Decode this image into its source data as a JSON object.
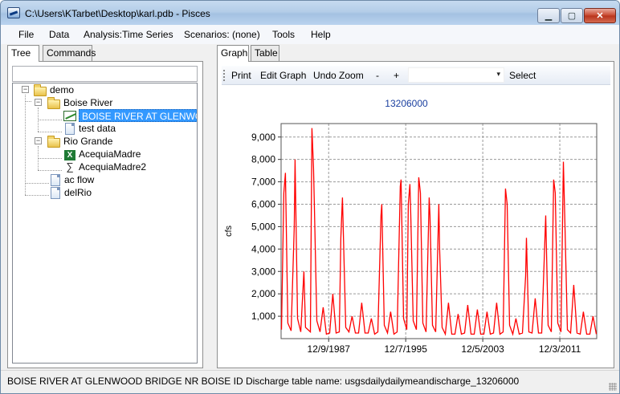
{
  "window": {
    "title": "C:\\Users\\KTarbet\\Desktop\\karl.pdb - Pisces",
    "min_glyph": "▁",
    "max_glyph": "▢",
    "close_glyph": "✕"
  },
  "menu": {
    "file": "File",
    "data": "Data",
    "analysis": "Analysis:Time Series",
    "scenarios": "Scenarios: (none)",
    "tools": "Tools",
    "help": "Help"
  },
  "left_tabs": {
    "tree": "Tree",
    "commands": "Commands"
  },
  "tree": {
    "root": "demo",
    "boise_river": "Boise River",
    "boise_glenwood": "BOISE RIVER AT GLENWOOD",
    "test_data": "test data",
    "rio_grande": "Rio Grande",
    "acequia1": "AcequiaMadre",
    "acequia2": "AcequiaMadre2",
    "ac_flow": "ac flow",
    "del_rio": "delRio",
    "expander_glyph": "−"
  },
  "right_tabs": {
    "graph": "Graph",
    "table": "Table"
  },
  "toolbar": {
    "print": "Print",
    "edit_graph": "Edit Graph",
    "undo_zoom": "Undo Zoom",
    "minus": "-",
    "plus": "+",
    "combo_value": "",
    "combo_arrow": "▾",
    "select": "Select"
  },
  "status": {
    "text": "BOISE RIVER AT GLENWOOD BRIDGE NR BOISE ID Discharge table name: usgsdailydailymeandischarge_13206000"
  },
  "colors": {
    "series": "#ff0000",
    "title": "#1a3f9f",
    "selection": "#3399ff"
  },
  "chart_data": {
    "type": "line",
    "title": "13206000",
    "ylabel": "cfs",
    "xlabel": "",
    "ylim": [
      0,
      9600
    ],
    "y_ticks": [
      1000,
      2000,
      3000,
      4000,
      5000,
      6000,
      7000,
      8000,
      9000
    ],
    "y_tick_labels": [
      "1,000",
      "2,000",
      "3,000",
      "4,000",
      "5,000",
      "6,000",
      "7,000",
      "8,000",
      "9,000"
    ],
    "x_tick_labels": [
      "12/9/1987",
      "12/7/1995",
      "12/5/2003",
      "12/3/2011"
    ],
    "xlim": [
      "1983-01-01",
      "2015-10-01"
    ],
    "grid": true,
    "series": [
      {
        "x": [
          "1983-01",
          "1983-04",
          "1983-06",
          "1983-09",
          "1984-01",
          "1984-05",
          "1984-06",
          "1984-09",
          "1985-01",
          "1985-05",
          "1985-07",
          "1986-01",
          "1986-03",
          "1986-05",
          "1986-06",
          "1986-09",
          "1987-01",
          "1987-05",
          "1987-09",
          "1988-01",
          "1988-05",
          "1988-09",
          "1989-01",
          "1989-03",
          "1989-05",
          "1989-09",
          "1990-01",
          "1990-05",
          "1990-09",
          "1991-01",
          "1991-05",
          "1991-09",
          "1992-01",
          "1992-05",
          "1992-09",
          "1993-01",
          "1993-05",
          "1993-06",
          "1993-09",
          "1994-01",
          "1994-05",
          "1994-09",
          "1995-01",
          "1995-05",
          "1995-06",
          "1995-09",
          "1996-01",
          "1996-03",
          "1996-05",
          "1996-06",
          "1996-09",
          "1997-01",
          "1997-04",
          "1997-06",
          "1997-09",
          "1998-01",
          "1998-05",
          "1998-06",
          "1998-09",
          "1999-01",
          "1999-05",
          "1999-06",
          "1999-09",
          "2000-01",
          "2000-05",
          "2000-09",
          "2001-01",
          "2001-05",
          "2001-09",
          "2002-01",
          "2002-05",
          "2002-09",
          "2003-01",
          "2003-05",
          "2003-09",
          "2004-01",
          "2004-05",
          "2004-09",
          "2005-01",
          "2005-05",
          "2005-09",
          "2006-01",
          "2006-04",
          "2006-06",
          "2006-09",
          "2007-01",
          "2007-05",
          "2007-09",
          "2008-01",
          "2008-05",
          "2008-06",
          "2008-09",
          "2009-01",
          "2009-05",
          "2009-09",
          "2010-01",
          "2010-06",
          "2010-09",
          "2011-01",
          "2011-04",
          "2011-06",
          "2011-09",
          "2012-01",
          "2012-04",
          "2012-06",
          "2012-09",
          "2013-01",
          "2013-05",
          "2013-09",
          "2014-01",
          "2014-05",
          "2014-09",
          "2015-01",
          "2015-05",
          "2015-09"
        ],
        "y": [
          400,
          6500,
          7400,
          700,
          350,
          5000,
          8000,
          900,
          300,
          3000,
          500,
          300,
          9400,
          7600,
          6000,
          800,
          300,
          1400,
          200,
          250,
          2000,
          250,
          300,
          4500,
          6300,
          500,
          300,
          1000,
          250,
          250,
          1600,
          250,
          250,
          900,
          200,
          300,
          5500,
          6000,
          600,
          250,
          1200,
          200,
          300,
          6800,
          7100,
          900,
          400,
          6000,
          6900,
          5500,
          800,
          400,
          7200,
          6500,
          700,
          300,
          6300,
          5500,
          600,
          300,
          6000,
          4000,
          500,
          200,
          1600,
          200,
          200,
          1100,
          200,
          250,
          1500,
          200,
          200,
          1300,
          200,
          200,
          1200,
          200,
          250,
          1600,
          200,
          300,
          6700,
          6000,
          600,
          200,
          900,
          200,
          250,
          2800,
          4500,
          300,
          250,
          1800,
          250,
          250,
          5500,
          600,
          300,
          7100,
          6500,
          700,
          300,
          7900,
          5000,
          400,
          250,
          2400,
          250,
          200,
          1200,
          200,
          200,
          1000,
          200
        ]
      }
    ]
  }
}
